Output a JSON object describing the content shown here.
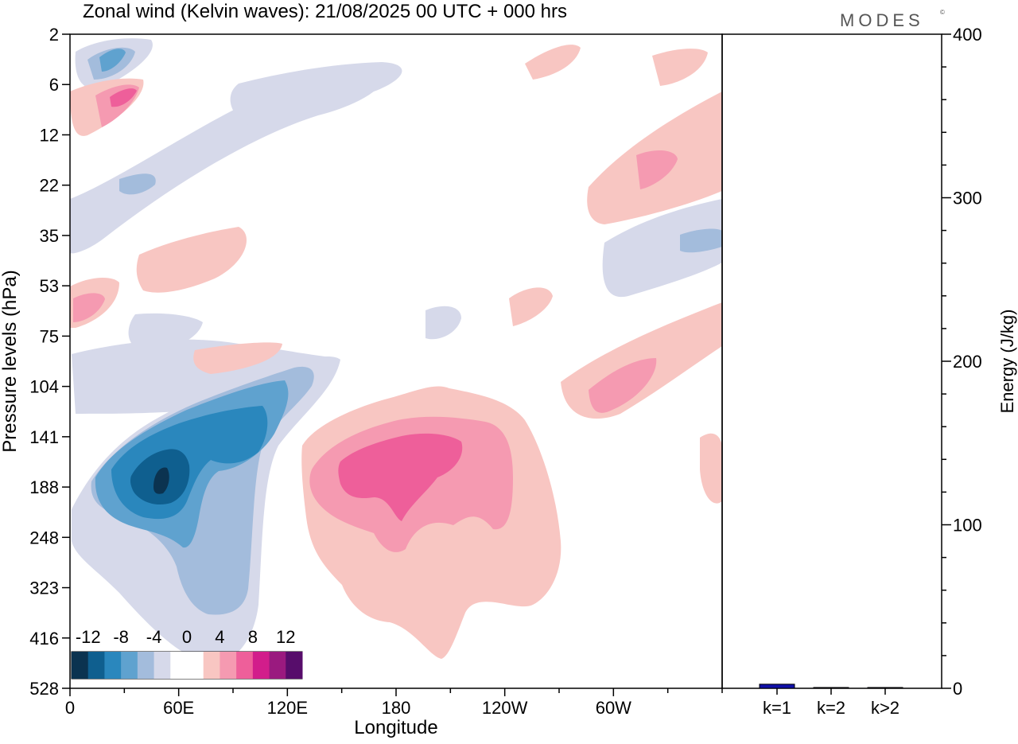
{
  "title": "Zonal wind (Kelvin waves):  21/08/2025  00 UTC  + 000 hrs",
  "brand": "MODES",
  "brand_mark": "©",
  "chart_data": [
    {
      "type": "heatmap",
      "title": "Zonal wind (Kelvin waves):  21/08/2025  00 UTC  + 000 hrs",
      "xlabel": "Longitude",
      "ylabel": "Pressure levels (hPa)",
      "x_ticks": [
        "0",
        "60E",
        "120E",
        "180",
        "120W",
        "60W"
      ],
      "x_tick_degrees": [
        0,
        60,
        120,
        180,
        240,
        300
      ],
      "xlim": [
        0,
        360
      ],
      "y_ticks": [
        "2",
        "6",
        "12",
        "22",
        "35",
        "53",
        "75",
        "104",
        "141",
        "188",
        "248",
        "323",
        "416",
        "528"
      ],
      "colorbar": {
        "ticks": [
          "-12",
          "-8",
          "-4",
          "0",
          "4",
          "8",
          "12"
        ],
        "levels": [
          -14,
          -12,
          -10,
          -8,
          -6,
          -4,
          -2,
          0,
          2,
          4,
          6,
          8,
          10,
          12,
          14
        ],
        "colors": [
          "#0b3350",
          "#0f5f8f",
          "#2a87bd",
          "#5fa2cf",
          "#a3bcdc",
          "#d6d9ea",
          "#ffffff",
          "#ffffff",
          "#f8c6c2",
          "#f59ab1",
          "#ee5f9a",
          "#d21d8b",
          "#9a1a7f",
          "#570d6b"
        ]
      },
      "features": [
        {
          "sign": "negative",
          "peak": -13,
          "center_lon": 48,
          "center_level": "188"
        },
        {
          "sign": "positive",
          "peak": 9,
          "center_lon": 190,
          "center_level": "141"
        },
        {
          "sign": "positive",
          "peak": 6,
          "center_lon": 310,
          "center_level": "104"
        }
      ]
    },
    {
      "type": "bar",
      "categories": [
        "k=1",
        "k=2",
        "k>2"
      ],
      "values": [
        2.5,
        0.5,
        0.5
      ],
      "ylabel": "Energy (J/kg)",
      "ylim": [
        0,
        400
      ],
      "y_ticks": [
        "0",
        "100",
        "200",
        "300",
        "400"
      ],
      "colors": [
        "#1010a8",
        "#1010a8",
        "#1010a8"
      ]
    }
  ]
}
